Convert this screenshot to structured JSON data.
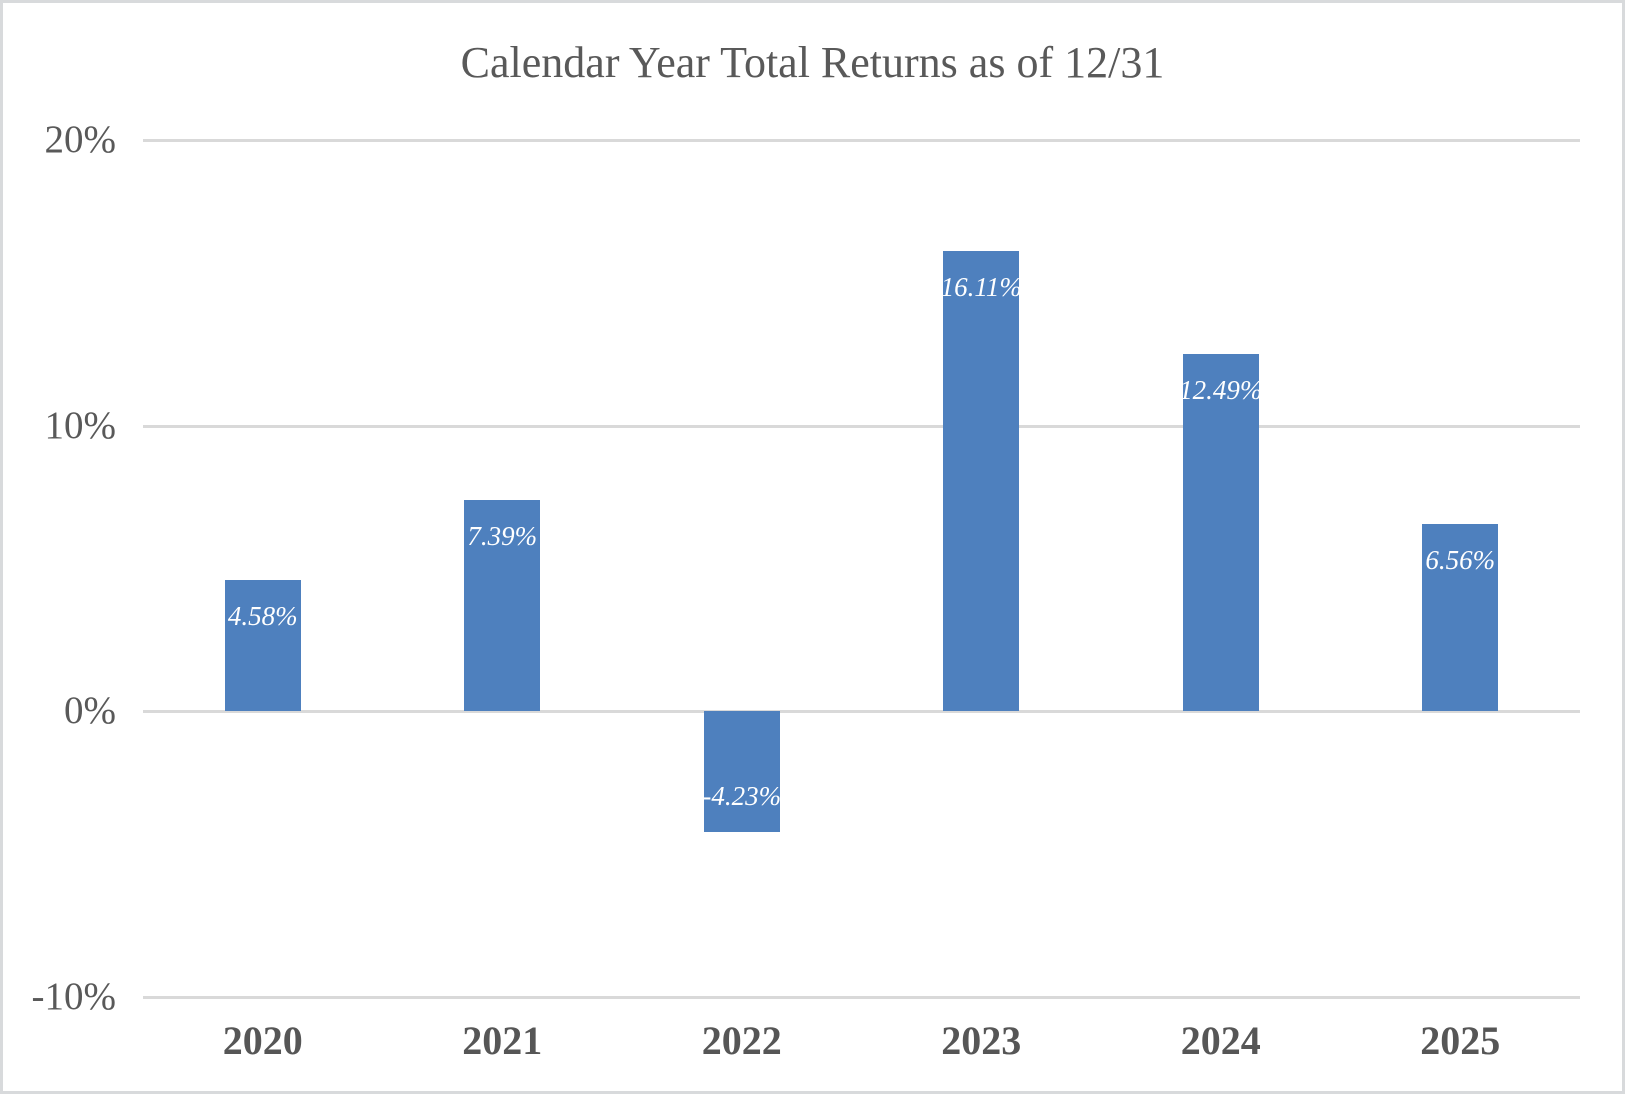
{
  "chart_data": {
    "type": "bar",
    "title": "Calendar Year Total Returns as of 12/31",
    "categories": [
      "2020",
      "2021",
      "2022",
      "2023",
      "2024",
      "2025"
    ],
    "values": [
      4.58,
      7.39,
      -4.23,
      16.11,
      12.49,
      6.56
    ],
    "data_labels": [
      "4.58%",
      "7.39%",
      "-4.23%",
      "16.11%",
      "12.49%",
      "6.56%"
    ],
    "xlabel": "",
    "ylabel": "",
    "ylim": [
      -10,
      20
    ],
    "yticks": [
      20,
      10,
      0,
      -10
    ],
    "ytick_labels": [
      "20%",
      "10%",
      "0%",
      "-10%"
    ],
    "grid": true,
    "legend": false,
    "data_label_position": "inside-end",
    "colors": {
      "bar": "#4e80be",
      "gridline": "#d9d9d9",
      "axis_text": "#595959",
      "data_label_text": "#ffffff",
      "title_text": "#595959",
      "frame_border": "#d8dadc",
      "background": "#ffffff"
    }
  }
}
